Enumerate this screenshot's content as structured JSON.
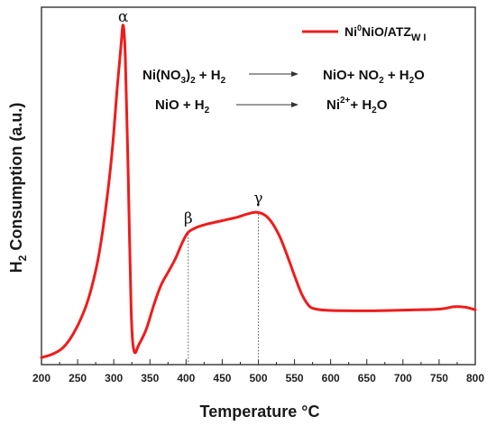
{
  "chart_data": {
    "type": "line",
    "xlabel": "Temperature °C",
    "ylabel": "H2 Consumption (a.u.)",
    "xlim": [
      200,
      800
    ],
    "ylim": [
      0,
      100
    ],
    "x_ticks": [
      "200",
      "250",
      "300",
      "350",
      "400",
      "450",
      "500",
      "550",
      "600",
      "650",
      "700",
      "750",
      "800"
    ],
    "y_ticks_shown": false,
    "grid": false,
    "legend_position": "top-right",
    "series": [
      {
        "name": "Ni0NiO/ATZWI",
        "color": "#ee1c1c",
        "points": [
          [
            200,
            0.5
          ],
          [
            215,
            1.5
          ],
          [
            230,
            3.5
          ],
          [
            245,
            8
          ],
          [
            260,
            15
          ],
          [
            270,
            22
          ],
          [
            280,
            32
          ],
          [
            290,
            47
          ],
          [
            298,
            63
          ],
          [
            305,
            82
          ],
          [
            310,
            94
          ],
          [
            313,
            100
          ],
          [
            316,
            90
          ],
          [
            320,
            55
          ],
          [
            324,
            15
          ],
          [
            328,
            2.5
          ],
          [
            335,
            4.5
          ],
          [
            345,
            9
          ],
          [
            355,
            16
          ],
          [
            365,
            22
          ],
          [
            375,
            26
          ],
          [
            385,
            30
          ],
          [
            395,
            35
          ],
          [
            403,
            38
          ],
          [
            415,
            39.5
          ],
          [
            430,
            40.5
          ],
          [
            450,
            41.5
          ],
          [
            470,
            42.5
          ],
          [
            485,
            43.5
          ],
          [
            498,
            44
          ],
          [
            510,
            43
          ],
          [
            520,
            40.5
          ],
          [
            530,
            36.5
          ],
          [
            540,
            31
          ],
          [
            550,
            25
          ],
          [
            560,
            19.5
          ],
          [
            570,
            16
          ],
          [
            580,
            15
          ],
          [
            600,
            14.6
          ],
          [
            650,
            14.5
          ],
          [
            700,
            14.7
          ],
          [
            750,
            15
          ],
          [
            770,
            15.7
          ],
          [
            785,
            15.6
          ],
          [
            800,
            14.8
          ]
        ]
      }
    ],
    "peaks": [
      {
        "label": "α",
        "x": 313,
        "y": 100,
        "guide": false
      },
      {
        "label": "β",
        "x": 403,
        "y": 38,
        "guide": true
      },
      {
        "label": "γ",
        "x": 500,
        "y": 44,
        "guide": true
      }
    ]
  },
  "legend": {
    "label_main": "Ni",
    "label_sup": "0",
    "label_mid": "NiO/ATZ",
    "label_sub": "W I"
  },
  "equations": [
    {
      "lhs": "Ni(NO",
      "lhs_sub1": "3",
      "lhs_mid": ")",
      "lhs_sub2": "2",
      "lhs_tail": " + H",
      "lhs_sub3": "2",
      "rhs": "NiO+ NO",
      "rhs_sub1": "2",
      "rhs_mid": " + H",
      "rhs_sub2": "2",
      "rhs_tail": "O"
    },
    {
      "lhs": "NiO + H",
      "lhs_sub1": "2",
      "rhs": "Ni",
      "rhs_sup": "2+",
      "rhs_mid": "+ H",
      "rhs_sub2": "2",
      "rhs_tail": "O"
    }
  ],
  "ylabel_parts": {
    "pre": "H",
    "sub": "2",
    "post": " Consumption (a.u.)"
  }
}
